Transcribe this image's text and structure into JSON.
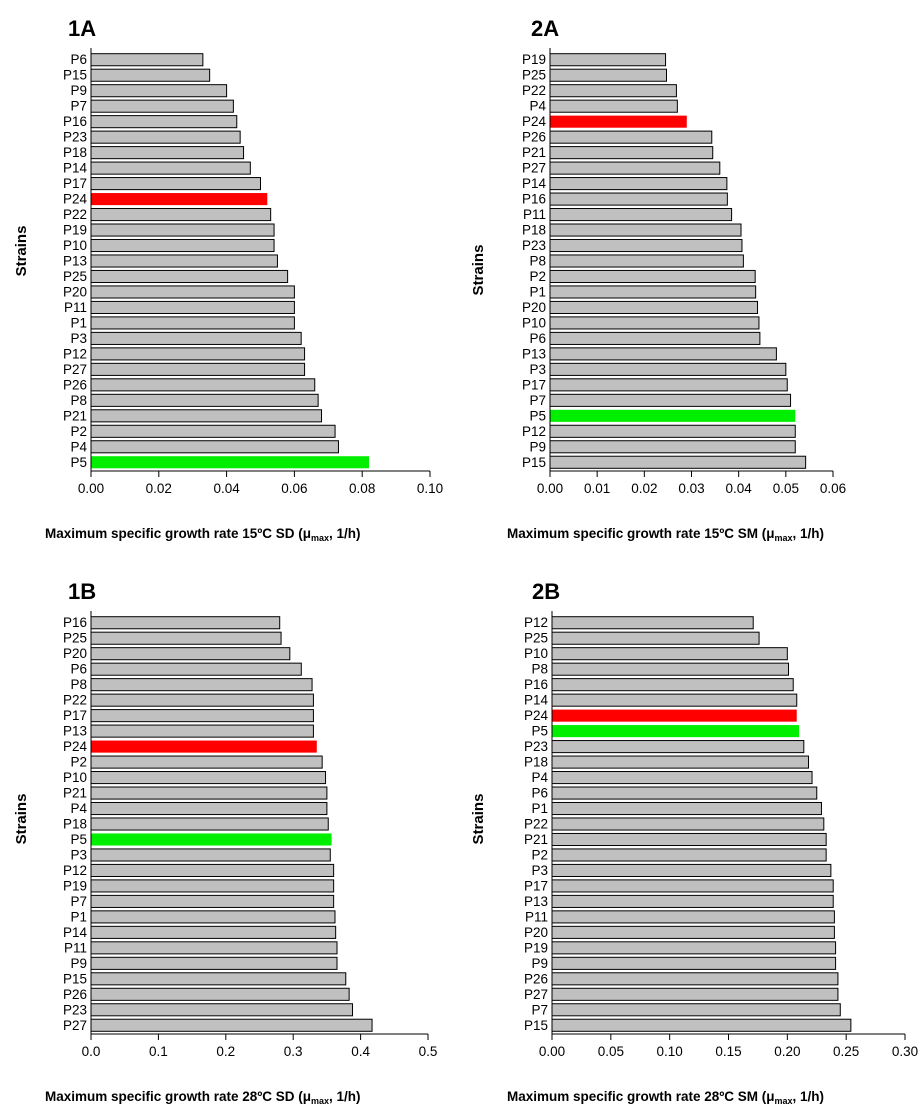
{
  "colors": {
    "default_bar": "#c0c0c0",
    "highlight_red": "#ff0000",
    "highlight_green": "#00ee00",
    "bar_stroke": "#000000"
  },
  "chart_data": [
    {
      "panel": "1A",
      "type": "bar",
      "orientation": "horizontal",
      "ylabel": "Strains",
      "xlabel": {
        "prefix": "Maximum  specific growth rate  15ºC SD (μ",
        "sub": "max",
        "suffix": ", 1/h)"
      },
      "xlim": [
        0,
        0.1
      ],
      "xticks": [
        "0.00",
        "0.02",
        "0.04",
        "0.06",
        "0.08",
        "0.10"
      ],
      "categories": [
        "P6",
        "P15",
        "P9",
        "P7",
        "P16",
        "P23",
        "P18",
        "P14",
        "P17",
        "P24",
        "P22",
        "P19",
        "P10",
        "P13",
        "P25",
        "P20",
        "P11",
        "P1",
        "P3",
        "P12",
        "P27",
        "P26",
        "P8",
        "P21",
        "P2",
        "P4",
        "P5"
      ],
      "values": [
        0.033,
        0.035,
        0.04,
        0.042,
        0.043,
        0.044,
        0.045,
        0.047,
        0.05,
        0.052,
        0.053,
        0.054,
        0.054,
        0.055,
        0.058,
        0.06,
        0.06,
        0.06,
        0.062,
        0.063,
        0.063,
        0.066,
        0.067,
        0.068,
        0.072,
        0.073,
        0.082
      ],
      "highlight": {
        "P24": "red",
        "P5": "green"
      },
      "grid": false
    },
    {
      "panel": "2A",
      "type": "bar",
      "orientation": "horizontal",
      "ylabel": "Strains",
      "xlabel": {
        "prefix": "Maximum  specific growth rate  15ºC SM (μ",
        "sub": "max",
        "suffix": ", 1/h)"
      },
      "xlim": [
        0,
        0.06
      ],
      "xticks": [
        "0.00",
        "0.01",
        "0.02",
        "0.03",
        "0.04",
        "0.05",
        "0.06"
      ],
      "categories": [
        "P19",
        "P25",
        "P22",
        "P4",
        "P24",
        "P26",
        "P21",
        "P27",
        "P14",
        "P16",
        "P11",
        "P18",
        "P23",
        "P8",
        "P2",
        "P1",
        "P20",
        "P10",
        "P6",
        "P13",
        "P3",
        "P17",
        "P7",
        "P5",
        "P12",
        "P9",
        "P15"
      ],
      "values": [
        0.0245,
        0.0247,
        0.0268,
        0.027,
        0.029,
        0.0343,
        0.0345,
        0.036,
        0.0375,
        0.0376,
        0.0385,
        0.0405,
        0.0407,
        0.041,
        0.0435,
        0.0436,
        0.044,
        0.0443,
        0.0445,
        0.048,
        0.05,
        0.0503,
        0.051,
        0.052,
        0.052,
        0.052,
        0.0542
      ],
      "highlight": {
        "P24": "red",
        "P5": "green"
      },
      "grid": false
    },
    {
      "panel": "1B",
      "type": "bar",
      "orientation": "horizontal",
      "ylabel": "Strains",
      "xlabel": {
        "prefix": "Maximum  specific growth rate  28ºC SD (μ",
        "sub": "max",
        "suffix": ", 1/h)"
      },
      "xlim": [
        0,
        0.5
      ],
      "xticks": [
        "0.0",
        "0.1",
        "0.2",
        "0.3",
        "0.4",
        "0.5"
      ],
      "categories": [
        "P16",
        "P25",
        "P20",
        "P6",
        "P8",
        "P22",
        "P17",
        "P13",
        "P24",
        "P2",
        "P10",
        "P21",
        "P4",
        "P18",
        "P5",
        "P3",
        "P12",
        "P19",
        "P7",
        "P1",
        "P14",
        "P11",
        "P9",
        "P15",
        "P26",
        "P23",
        "P27"
      ],
      "values": [
        0.28,
        0.282,
        0.295,
        0.312,
        0.328,
        0.33,
        0.33,
        0.33,
        0.335,
        0.343,
        0.348,
        0.35,
        0.35,
        0.352,
        0.357,
        0.355,
        0.36,
        0.36,
        0.36,
        0.362,
        0.363,
        0.365,
        0.365,
        0.378,
        0.383,
        0.388,
        0.417
      ],
      "highlight": {
        "P24": "red",
        "P5": "green"
      },
      "grid": false
    },
    {
      "panel": "2B",
      "type": "bar",
      "orientation": "horizontal",
      "ylabel": "Strains",
      "xlabel": {
        "prefix": "Maximum  specific growth rate  28ºC SM (μ",
        "sub": "max",
        "suffix": ", 1/h)"
      },
      "xlim": [
        0,
        0.3
      ],
      "xticks": [
        "0.00",
        "0.05",
        "0.10",
        "0.15",
        "0.20",
        "0.25",
        "0.30"
      ],
      "categories": [
        "P12",
        "P25",
        "P10",
        "P8",
        "P16",
        "P14",
        "P24",
        "P5",
        "P23",
        "P18",
        "P4",
        "P6",
        "P1",
        "P22",
        "P21",
        "P2",
        "P3",
        "P17",
        "P13",
        "P11",
        "P20",
        "P19",
        "P9",
        "P26",
        "P27",
        "P7",
        "P15"
      ],
      "values": [
        0.171,
        0.176,
        0.2,
        0.201,
        0.205,
        0.208,
        0.208,
        0.21,
        0.214,
        0.218,
        0.221,
        0.225,
        0.229,
        0.231,
        0.233,
        0.233,
        0.237,
        0.239,
        0.239,
        0.24,
        0.24,
        0.241,
        0.241,
        0.243,
        0.243,
        0.245,
        0.254
      ],
      "highlight": {
        "P24": "red",
        "P5": "green"
      },
      "grid": false
    }
  ]
}
